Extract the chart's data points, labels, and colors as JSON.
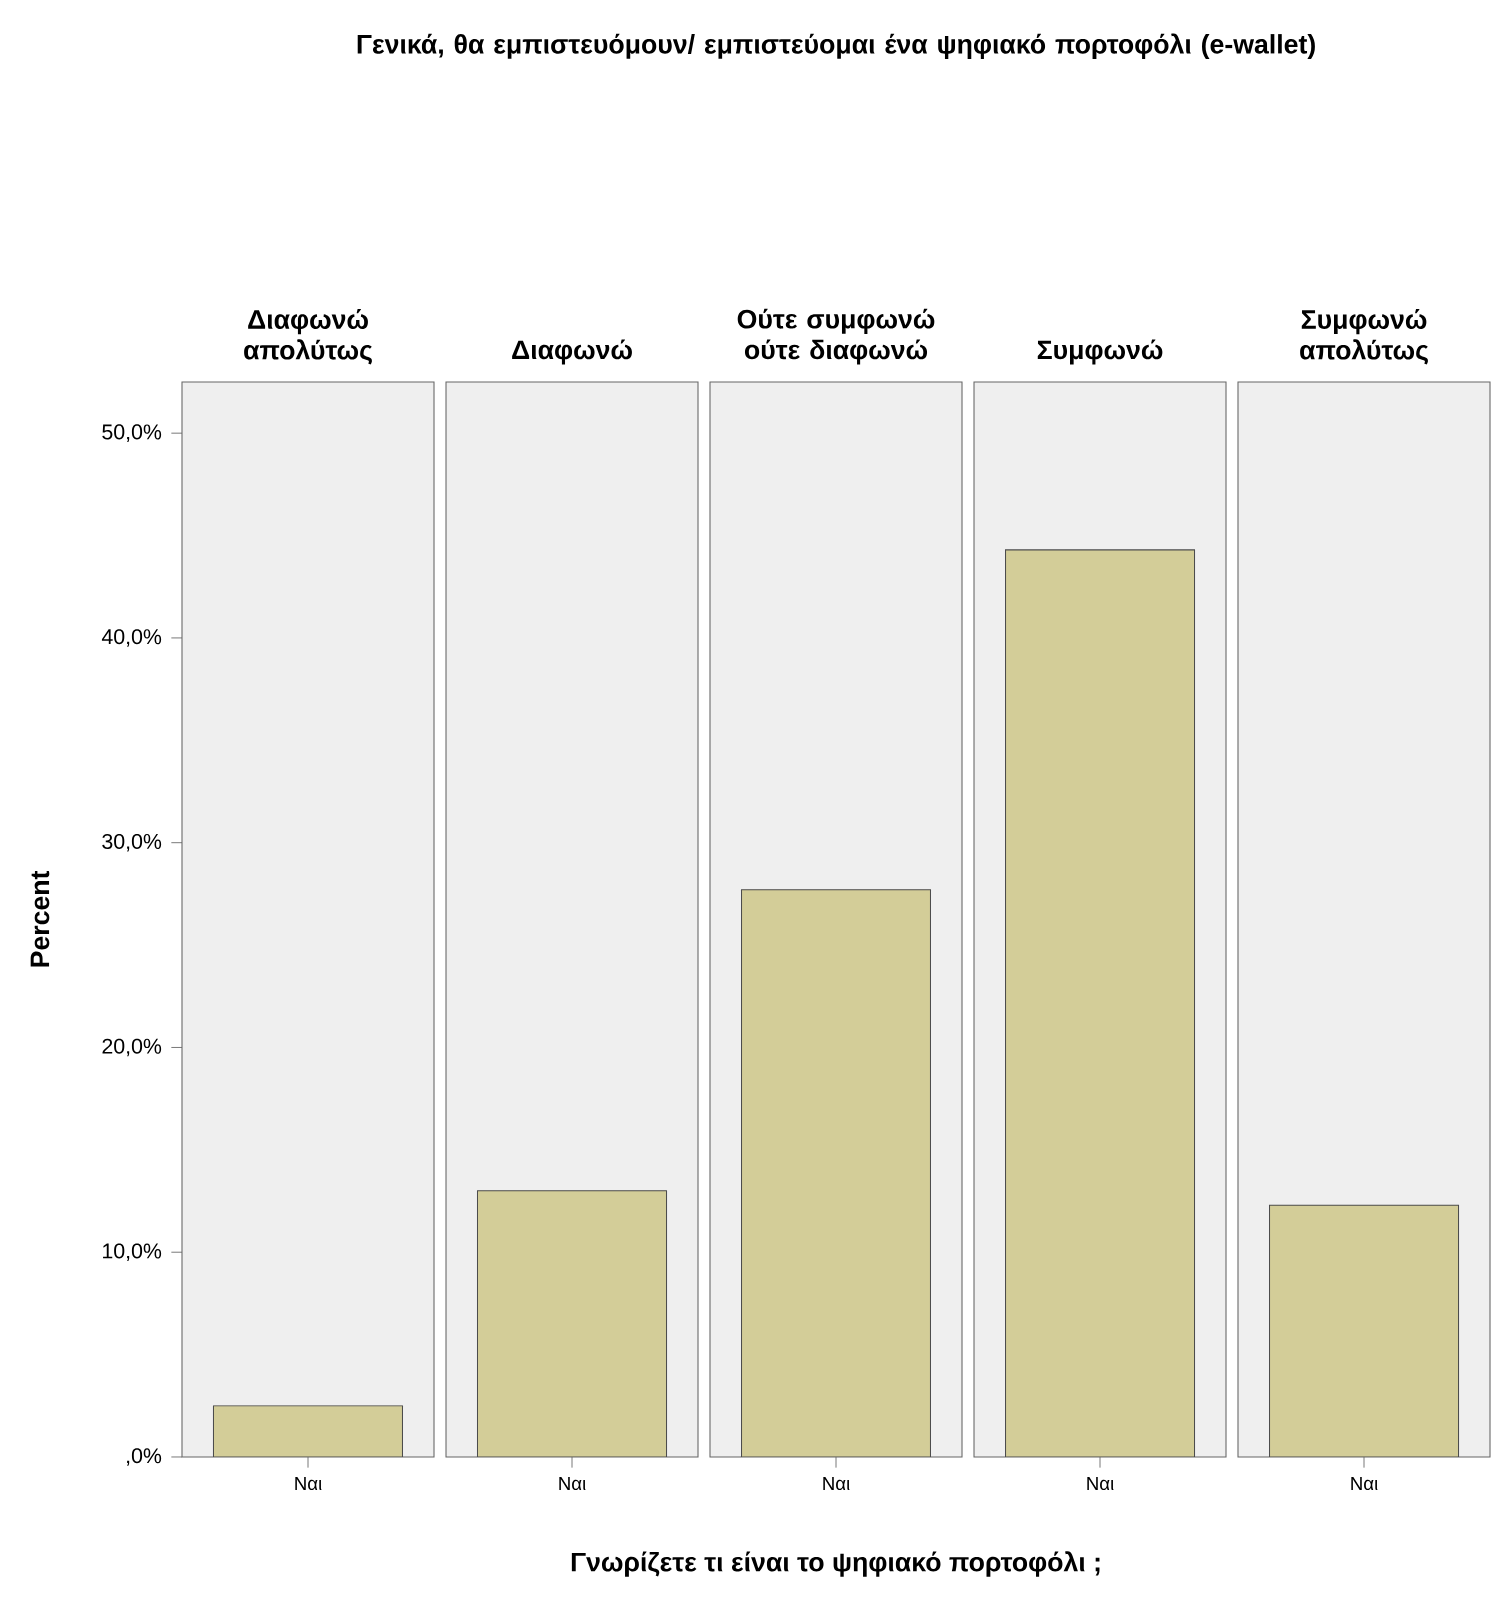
{
  "chart_data": [
    {
      "type": "bar",
      "title": "Διαφωνώ απολύτως",
      "annotations": [
        "Γενικά, θα εμπιστευόμουν/ εμπιστεύομαι ένα ψηφιακό πορτοφόλι (e-wallet)"
      ],
      "xlabel": "Γνωρίζετε τι είναι το ψηφιακό πορτοφόλι ;",
      "ylabel": "Percent",
      "categories": [
        "Ναι"
      ],
      "values": [
        2.5
      ],
      "color": "#d3cd98",
      "ylim": [
        0,
        52.5
      ],
      "yticks": [
        {
          "value": 0,
          "label": ",0%"
        },
        {
          "value": 10,
          "label": "10,0%"
        },
        {
          "value": 20,
          "label": "20,0%"
        },
        {
          "value": 30,
          "label": "30,0%"
        },
        {
          "value": 40,
          "label": "40,0%"
        },
        {
          "value": 50,
          "label": "50,0%"
        }
      ]
    },
    {
      "type": "bar",
      "title": "Διαφωνώ",
      "categories": [
        "Ναι"
      ],
      "values": [
        13.0
      ],
      "color": "#d3cd98",
      "ylim": [
        0,
        52.5
      ],
      "tick_labels": "x"
    },
    {
      "type": "bar",
      "title": "Ούτε συμφωνώ ούτε διαφωνώ",
      "categories": [
        "Ναι"
      ],
      "values": [
        27.7
      ],
      "color": "#d3cd98",
      "ylim": [
        0,
        52.5
      ],
      "tick_labels": "x"
    },
    {
      "type": "bar",
      "title": "Συμφωνώ",
      "categories": [
        "Ναι"
      ],
      "values": [
        44.3
      ],
      "color": "#d3cd98",
      "ylim": [
        0,
        52.5
      ],
      "tick_labels": "x"
    },
    {
      "type": "bar",
      "title": "Συμφωνώ απολύτως",
      "categories": [
        "Ναι"
      ],
      "values": [
        12.3
      ],
      "color": "#d3cd98",
      "ylim": [
        0,
        52.5
      ],
      "tick_labels": "x"
    }
  ]
}
